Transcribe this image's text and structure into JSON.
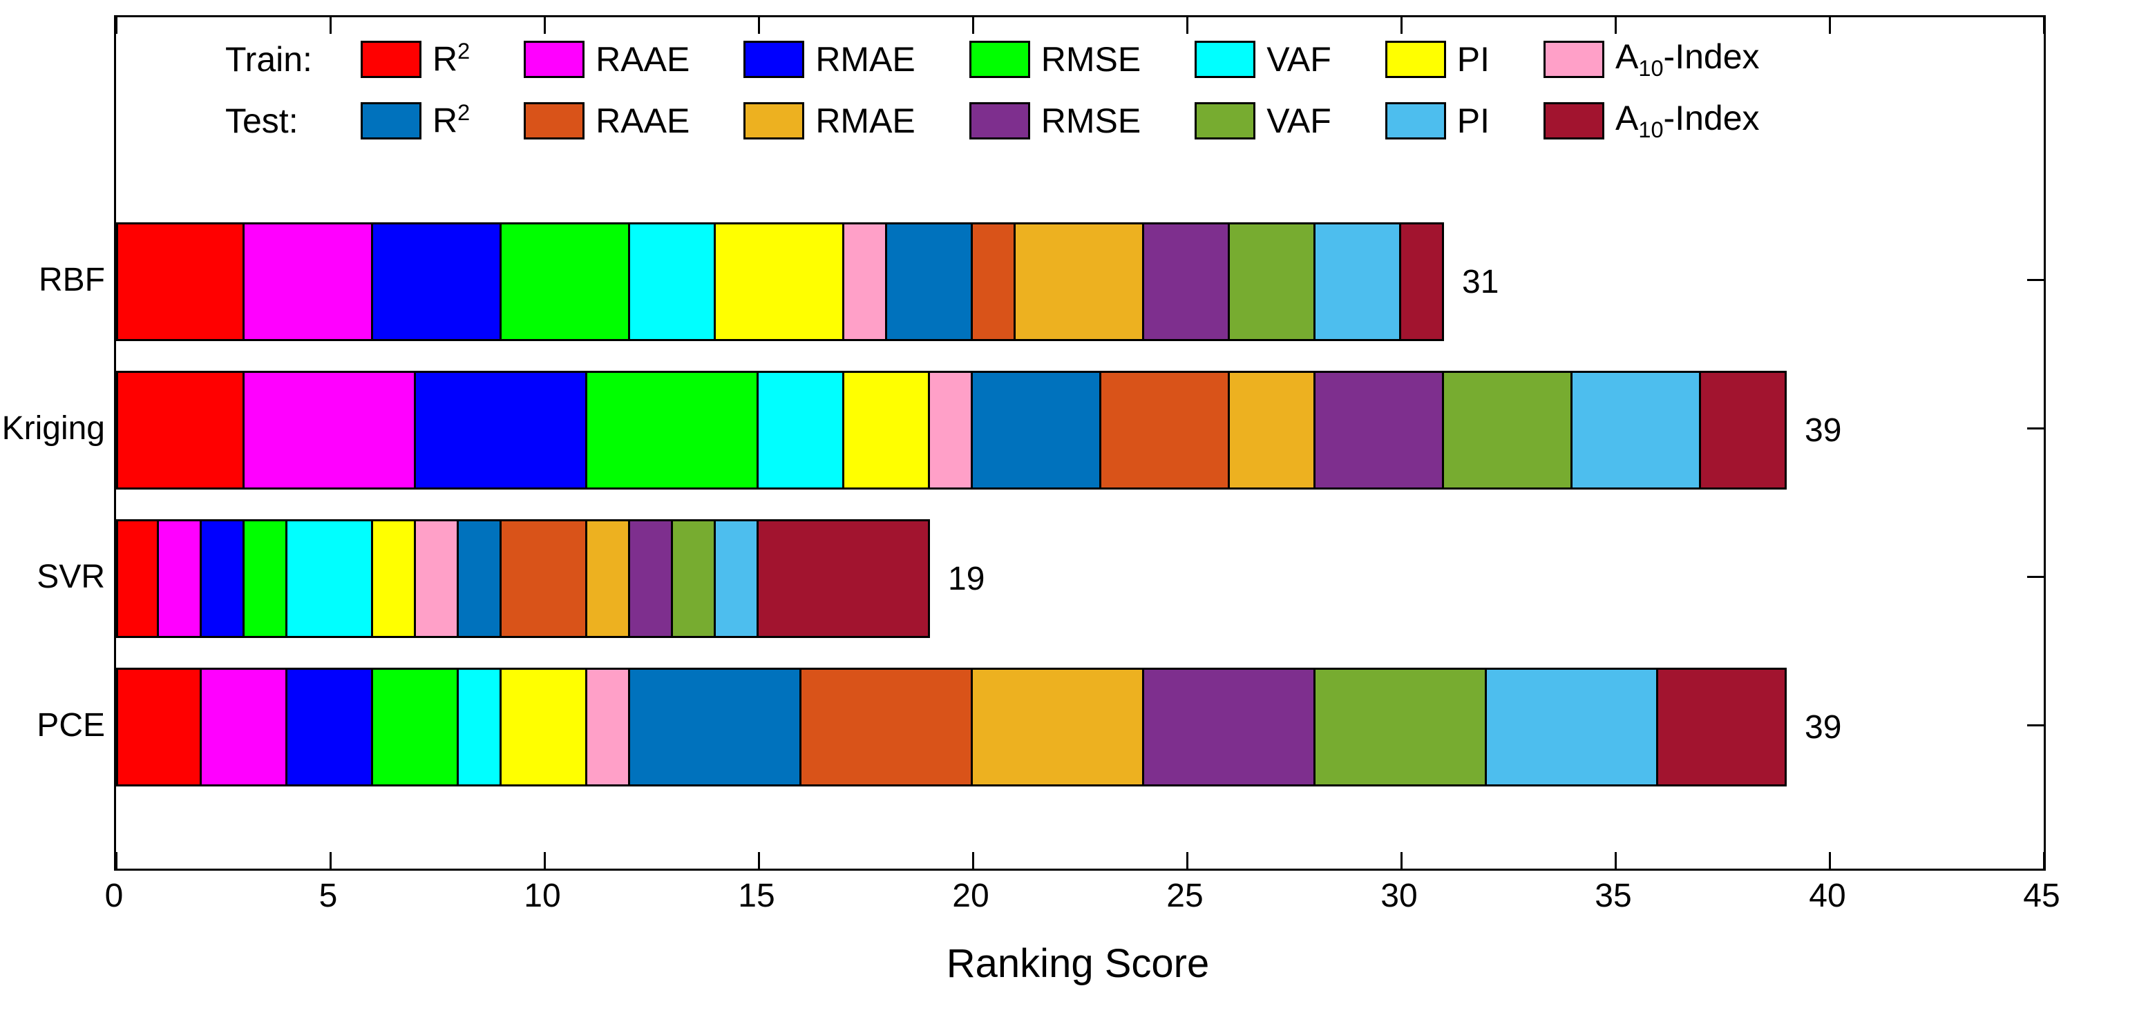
{
  "figure": {
    "background": "#FFFFFF",
    "axis_color": "#000000"
  },
  "chart_data": {
    "type": "bar",
    "orientation": "horizontal",
    "stacked": true,
    "title": "",
    "xlabel": "Ranking Score",
    "ylabel": "",
    "categories": [
      "RBF",
      "Kriging",
      "SVR",
      "PCE"
    ],
    "bar_totals": [
      31,
      39,
      19,
      39
    ],
    "xlim": [
      0,
      45
    ],
    "xticks": [
      0,
      5,
      10,
      15,
      20,
      25,
      30,
      35,
      40,
      45
    ],
    "grid": false,
    "legend_position": "inside-top-left",
    "legend_groups": [
      {
        "id": "Train",
        "label": "Train:"
      },
      {
        "id": "Test",
        "label": "Test:"
      }
    ],
    "series": [
      {
        "name": "Train R2",
        "group": "Train",
        "label": {
          "text": "R",
          "sup": "2"
        },
        "color": "#FF0000",
        "values": [
          3,
          3,
          1,
          2
        ]
      },
      {
        "name": "Train RAAE",
        "group": "Train",
        "label": {
          "text": "RAAE"
        },
        "color": "#FF00FF",
        "values": [
          3,
          4,
          1,
          2
        ]
      },
      {
        "name": "Train RMAE",
        "group": "Train",
        "label": {
          "text": "RMAE"
        },
        "color": "#0000FF",
        "values": [
          3,
          4,
          1,
          2
        ]
      },
      {
        "name": "Train RMSE",
        "group": "Train",
        "label": {
          "text": "RMSE"
        },
        "color": "#00FF00",
        "values": [
          3,
          4,
          1,
          2
        ]
      },
      {
        "name": "Train VAF",
        "group": "Train",
        "label": {
          "text": "VAF"
        },
        "color": "#00FFFF",
        "values": [
          2,
          2,
          2,
          1
        ]
      },
      {
        "name": "Train PI",
        "group": "Train",
        "label": {
          "text": "PI"
        },
        "color": "#FFFF00",
        "values": [
          3,
          2,
          1,
          2
        ]
      },
      {
        "name": "Train A10-Index",
        "group": "Train",
        "label": {
          "text": "A",
          "sub": "10",
          "suffix": "-Index"
        },
        "color": "#FFA0C8",
        "values": [
          1,
          1,
          1,
          1
        ]
      },
      {
        "name": "Test R2",
        "group": "Test",
        "label": {
          "text": "R",
          "sup": "2"
        },
        "color": "#0072BD",
        "values": [
          2,
          3,
          1,
          4
        ]
      },
      {
        "name": "Test RAAE",
        "group": "Test",
        "label": {
          "text": "RAAE"
        },
        "color": "#D95319",
        "values": [
          1,
          3,
          2,
          4
        ]
      },
      {
        "name": "Test RMAE",
        "group": "Test",
        "label": {
          "text": "RMAE"
        },
        "color": "#EDB120",
        "values": [
          3,
          2,
          1,
          4
        ]
      },
      {
        "name": "Test RMSE",
        "group": "Test",
        "label": {
          "text": "RMSE"
        },
        "color": "#7E2F8E",
        "values": [
          2,
          3,
          1,
          4
        ]
      },
      {
        "name": "Test VAF",
        "group": "Test",
        "label": {
          "text": "VAF"
        },
        "color": "#77AC30",
        "values": [
          2,
          3,
          1,
          4
        ]
      },
      {
        "name": "Test PI",
        "group": "Test",
        "label": {
          "text": "PI"
        },
        "color": "#4DBEEE",
        "values": [
          2,
          3,
          1,
          4
        ]
      },
      {
        "name": "Test A10-Index",
        "group": "Test",
        "label": {
          "text": "A",
          "sub": "10",
          "suffix": "-Index"
        },
        "color": "#A2142F",
        "values": [
          1,
          2,
          4,
          3
        ]
      }
    ]
  }
}
